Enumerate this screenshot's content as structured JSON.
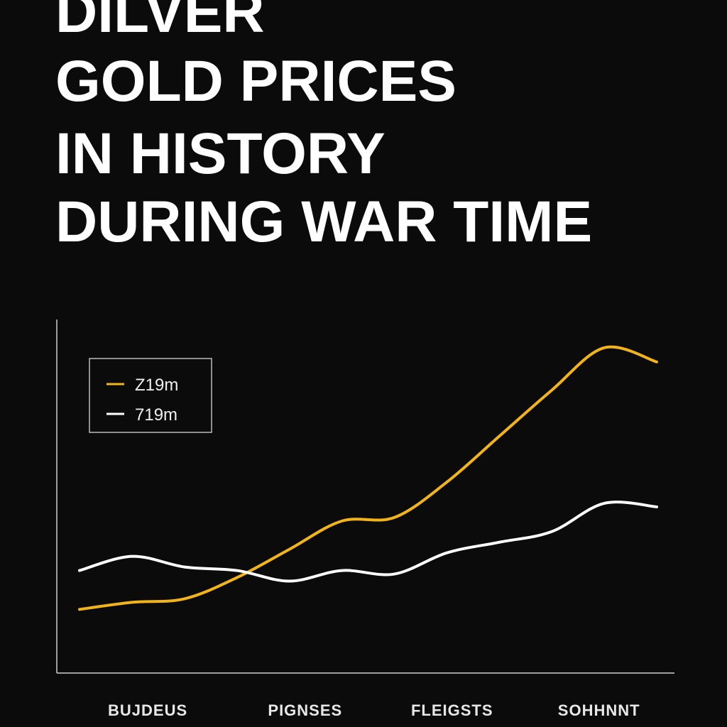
{
  "chart_data": {
    "type": "line",
    "title": [
      "DILVER",
      "GOLD PRICES",
      "IN HISTORY",
      "DURING WAR TIME"
    ],
    "x": [
      0,
      1,
      2,
      3,
      4,
      5,
      6,
      7,
      8,
      9,
      10,
      11
    ],
    "xlim": [
      0,
      11
    ],
    "xticks": [
      {
        "value": 1.3,
        "label": "BUJDEUS"
      },
      {
        "value": 4.3,
        "label": "PIGNSES"
      },
      {
        "value": 7.1,
        "label": "FLEIGSTS"
      },
      {
        "value": 9.9,
        "label": "SOHHNNT"
      }
    ],
    "ylim": [
      0,
      100
    ],
    "series": [
      {
        "name": "Z19m",
        "color": "#f2b416",
        "values": [
          18,
          20,
          21,
          27,
          35,
          43,
          44,
          54,
          67,
          80,
          92,
          88
        ]
      },
      {
        "name": "719m",
        "color": "#ffffff",
        "values": [
          29,
          33,
          30,
          29,
          26,
          29,
          28,
          34,
          37,
          40,
          48,
          47
        ]
      }
    ]
  }
}
